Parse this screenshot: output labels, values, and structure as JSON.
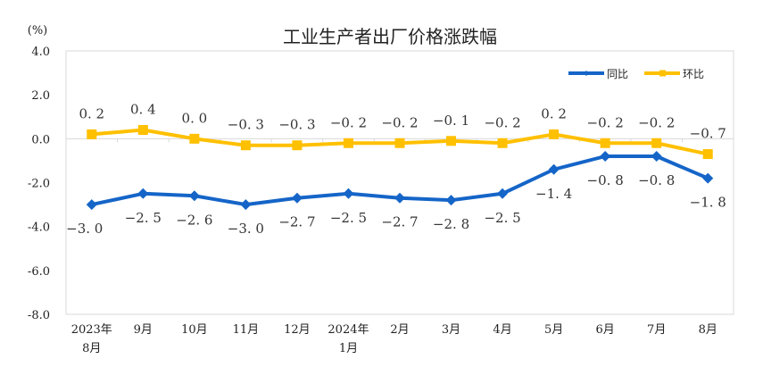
{
  "chart_data": {
    "type": "line",
    "title": "工业生产者出厂价格涨跌幅",
    "ylabel": "(%)",
    "ylim": [
      -8.0,
      4.0
    ],
    "yticks": [
      "4.0",
      "2.0",
      "0.0",
      "-2.0",
      "-4.0",
      "-6.0",
      "-8.0"
    ],
    "categories": [
      [
        "2023年",
        "8月"
      ],
      [
        "9月"
      ],
      [
        "10月"
      ],
      [
        "11月"
      ],
      [
        "12月"
      ],
      [
        "2024年",
        "1月"
      ],
      [
        "2月"
      ],
      [
        "3月"
      ],
      [
        "4月"
      ],
      [
        "5月"
      ],
      [
        "6月"
      ],
      [
        "7月"
      ],
      [
        "8月"
      ]
    ],
    "series": [
      {
        "name": "同比",
        "color": "#1565c8",
        "marker": "diamond",
        "values": [
          -3.0,
          -2.5,
          -2.6,
          -3.0,
          -2.7,
          -2.5,
          -2.7,
          -2.8,
          -2.5,
          -1.4,
          -0.8,
          -0.8,
          -1.8
        ]
      },
      {
        "name": "环比",
        "color": "#ffc000",
        "marker": "square",
        "values": [
          0.2,
          0.4,
          0.0,
          -0.3,
          -0.3,
          -0.2,
          -0.2,
          -0.1,
          -0.2,
          0.2,
          -0.2,
          -0.2,
          -0.7
        ]
      }
    ],
    "data_labels": true,
    "grid": false,
    "legend": "top-right"
  }
}
